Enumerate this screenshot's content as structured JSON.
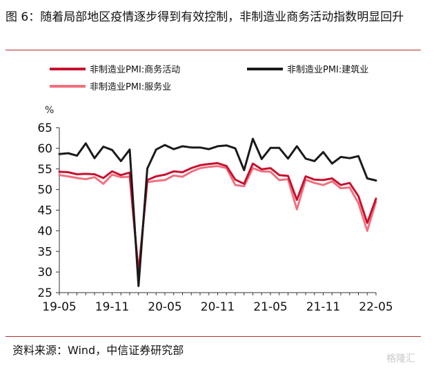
{
  "title": "图 6：随着局部地区疫情逐步得到有效控制，非制造业商务活动指数明显回升",
  "source": "资料来源：Wind，中信证券研究部",
  "watermark": "格隆汇",
  "chart_data": {
    "type": "line",
    "ylabel": "%",
    "ylim": [
      25,
      65
    ],
    "yticks": [
      25,
      30,
      35,
      40,
      45,
      50,
      55,
      60,
      65
    ],
    "x": [
      "19-05",
      "19-06",
      "19-07",
      "19-08",
      "19-09",
      "19-10",
      "19-11",
      "19-12",
      "20-01",
      "20-02",
      "20-03",
      "20-04",
      "20-05",
      "20-06",
      "20-07",
      "20-08",
      "20-09",
      "20-10",
      "20-11",
      "20-12",
      "21-01",
      "21-02",
      "21-03",
      "21-04",
      "21-05",
      "21-06",
      "21-07",
      "21-08",
      "21-09",
      "21-10",
      "21-11",
      "21-12",
      "22-01",
      "22-02",
      "22-03",
      "22-04",
      "22-05"
    ],
    "xticks": [
      "19-05",
      "19-11",
      "20-05",
      "20-11",
      "21-05",
      "21-11",
      "22-05"
    ],
    "series": [
      {
        "name": "非制造业PMI:商务活动",
        "color": "#c8102e",
        "values": [
          54.3,
          54.2,
          53.7,
          53.8,
          53.7,
          52.8,
          54.4,
          53.5,
          54.1,
          29.6,
          52.3,
          53.2,
          53.6,
          54.4,
          54.2,
          55.2,
          55.9,
          56.2,
          56.4,
          55.7,
          52.4,
          51.4,
          56.3,
          54.9,
          55.2,
          53.5,
          53.3,
          47.5,
          53.2,
          52.4,
          52.3,
          52.7,
          51.1,
          51.6,
          48.4,
          41.9,
          47.8
        ]
      },
      {
        "name": "非制造业PMI:建筑业",
        "color": "#1a1a1a",
        "values": [
          58.6,
          58.8,
          58.2,
          61.2,
          57.6,
          60.4,
          59.6,
          56.9,
          59.7,
          26.6,
          55.1,
          59.7,
          60.8,
          59.8,
          60.5,
          60.2,
          60.2,
          59.8,
          60.5,
          60.7,
          60.0,
          54.7,
          62.3,
          57.4,
          60.1,
          60.1,
          57.5,
          60.5,
          57.5,
          56.9,
          59.1,
          56.3,
          57.9,
          57.6,
          58.1,
          52.7,
          52.2
        ]
      },
      {
        "name": "非制造业PMI:服务业",
        "color": "#f0707e",
        "values": [
          53.5,
          53.2,
          52.8,
          52.5,
          53.0,
          51.4,
          53.6,
          53.0,
          53.1,
          30.1,
          51.8,
          52.1,
          52.3,
          53.4,
          53.1,
          54.3,
          55.2,
          55.5,
          55.7,
          55.2,
          51.1,
          50.8,
          55.2,
          54.4,
          54.3,
          52.3,
          52.5,
          45.2,
          52.4,
          51.6,
          51.1,
          52.0,
          50.3,
          50.5,
          46.7,
          40.0,
          47.1
        ]
      }
    ],
    "grid": false,
    "legend_position": "top"
  }
}
